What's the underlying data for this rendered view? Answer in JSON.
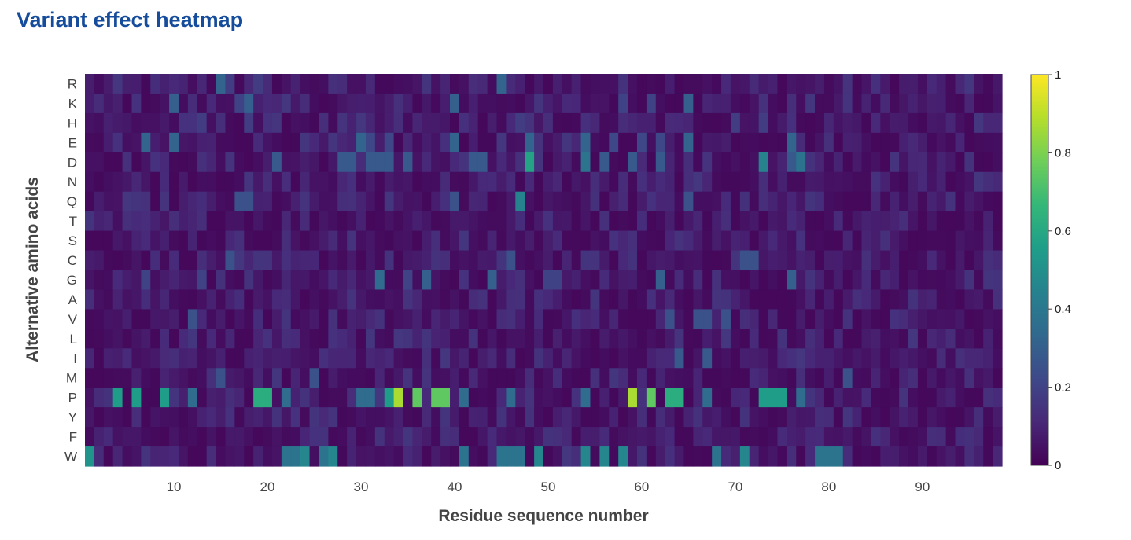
{
  "page": {
    "title": "Variant effect heatmap"
  },
  "colors": {
    "viridis": [
      "#440154",
      "#482878",
      "#3e4989",
      "#31688e",
      "#26828e",
      "#1f9e89",
      "#35b779",
      "#6ece58",
      "#b5de2b",
      "#fde725"
    ]
  },
  "chart_data": {
    "type": "heatmap",
    "title": "Variant effect heatmap",
    "xlabel": "Residue sequence number",
    "ylabel": "Alternative amino acids",
    "x_range": [
      1,
      98
    ],
    "x_ticks": [
      10,
      20,
      30,
      40,
      50,
      60,
      70,
      80,
      90
    ],
    "y_categories": [
      "R",
      "K",
      "H",
      "E",
      "D",
      "N",
      "Q",
      "T",
      "S",
      "C",
      "G",
      "A",
      "V",
      "L",
      "I",
      "M",
      "P",
      "Y",
      "F",
      "W"
    ],
    "colorbar": {
      "range": [
        0,
        1
      ],
      "ticks": [
        0,
        0.2,
        0.4,
        0.6,
        0.8,
        1
      ],
      "tick_labels": [
        "0",
        "0.2",
        "0.4",
        "0.6",
        "0.8",
        "1"
      ],
      "colorscale": "viridis"
    },
    "background_value_range": [
      0.02,
      0.16
    ],
    "notable_cells": [
      {
        "aa": "R",
        "pos": [
          15,
          45
        ],
        "value": 0.32
      },
      {
        "aa": "R",
        "pos": [
          16,
          19
        ],
        "value": 0.18
      },
      {
        "aa": "K",
        "pos": [
          10,
          18,
          40,
          65
        ],
        "value": 0.3
      },
      {
        "aa": "K",
        "pos": [
          17,
          58,
          61
        ],
        "value": 0.2
      },
      {
        "aa": "H",
        "pos": [
          13,
          18,
          47,
          70,
          73
        ],
        "value": 0.18
      },
      {
        "aa": "E",
        "pos": [
          7,
          10,
          30,
          40,
          48,
          54,
          65,
          76
        ],
        "value": 0.32
      },
      {
        "aa": "E",
        "pos": [
          31,
          33,
          57,
          60,
          62
        ],
        "value": 0.22
      },
      {
        "aa": "D",
        "pos": [
          48
        ],
        "value": 0.58
      },
      {
        "aa": "D",
        "pos": [
          73
        ],
        "value": 0.45
      },
      {
        "aa": "D",
        "pos": [
          54,
          77
        ],
        "value": 0.38
      },
      {
        "aa": "D",
        "pos": [
          21,
          28,
          29,
          31,
          32,
          33,
          35,
          42,
          43,
          56,
          59,
          62,
          76
        ],
        "value": 0.28
      },
      {
        "aa": "Q",
        "pos": [
          47
        ],
        "value": 0.45
      },
      {
        "aa": "Q",
        "pos": [
          17,
          18,
          40,
          65
        ],
        "value": 0.25
      },
      {
        "aa": "C",
        "pos": [
          16,
          46,
          71,
          72
        ],
        "value": 0.25
      },
      {
        "aa": "G",
        "pos": [
          32
        ],
        "value": 0.35
      },
      {
        "aa": "G",
        "pos": [
          37,
          44,
          62,
          76
        ],
        "value": 0.3
      },
      {
        "aa": "G",
        "pos": [
          7,
          13,
          35,
          50,
          51
        ],
        "value": 0.2
      },
      {
        "aa": "V",
        "pos": [
          12,
          63,
          66,
          67,
          69
        ],
        "value": 0.25
      },
      {
        "aa": "I",
        "pos": [
          64,
          67
        ],
        "value": 0.28
      },
      {
        "aa": "M",
        "pos": [
          15,
          25,
          82
        ],
        "value": 0.25
      },
      {
        "aa": "P",
        "pos": [
          34,
          59
        ],
        "value": 0.87
      },
      {
        "aa": "P",
        "pos": [
          36,
          38,
          39,
          61
        ],
        "value": 0.75
      },
      {
        "aa": "P",
        "pos": [
          19,
          20,
          63,
          64
        ],
        "value": 0.62
      },
      {
        "aa": "P",
        "pos": [
          4,
          6,
          9,
          33,
          73,
          74,
          75
        ],
        "value": 0.55
      },
      {
        "aa": "P",
        "pos": [
          12,
          22,
          30,
          31,
          41,
          46,
          54,
          67,
          77
        ],
        "value": 0.35
      },
      {
        "aa": "W",
        "pos": [
          1
        ],
        "value": 0.52
      },
      {
        "aa": "W",
        "pos": [
          24,
          27,
          49,
          54,
          56,
          58,
          71
        ],
        "value": 0.46
      },
      {
        "aa": "W",
        "pos": [
          22,
          23,
          26,
          41,
          45,
          46,
          47,
          68,
          79,
          80,
          81
        ],
        "value": 0.38
      }
    ]
  }
}
